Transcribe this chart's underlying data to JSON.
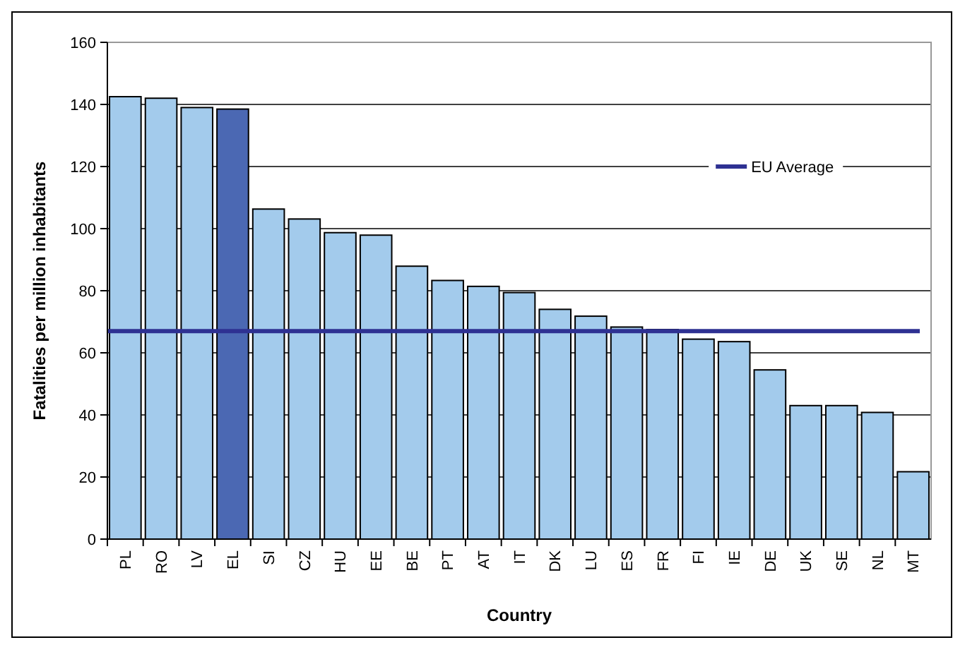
{
  "chart_data": {
    "type": "bar",
    "xlabel": "Country",
    "ylabel": "Fatalities per million inhabitants",
    "categories": [
      "PL",
      "RO",
      "LV",
      "EL",
      "SI",
      "CZ",
      "HU",
      "EE",
      "BE",
      "PT",
      "AT",
      "IT",
      "DK",
      "LU",
      "ES",
      "FR",
      "FI",
      "IE",
      "DE",
      "UK",
      "SE",
      "NL",
      "MT"
    ],
    "values": [
      142.5,
      142,
      139,
      138.5,
      106.3,
      103.1,
      98.7,
      97.9,
      87.9,
      83.3,
      81.4,
      79.4,
      74,
      71.8,
      68.3,
      67.5,
      64.4,
      63.6,
      54.5,
      43,
      43,
      40.8,
      21.7
    ],
    "colors": [
      "#a3cbec",
      "#a3cbec",
      "#a3cbec",
      "#4b68b3",
      "#a3cbec",
      "#a3cbec",
      "#a3cbec",
      "#a3cbec",
      "#a3cbec",
      "#a3cbec",
      "#a3cbec",
      "#a3cbec",
      "#a3cbec",
      "#a3cbec",
      "#a3cbec",
      "#a3cbec",
      "#a3cbec",
      "#a3cbec",
      "#a3cbec",
      "#a3cbec",
      "#a3cbec",
      "#a3cbec",
      "#a3cbec"
    ],
    "ylim": [
      0,
      160
    ],
    "yticks": [
      0,
      20,
      40,
      60,
      80,
      100,
      120,
      140,
      160
    ],
    "grid": "y",
    "ref_lines": [
      {
        "axis": "y",
        "value": 67,
        "label": "EU Average",
        "color": "#2e3192"
      }
    ],
    "legend": "top right"
  }
}
